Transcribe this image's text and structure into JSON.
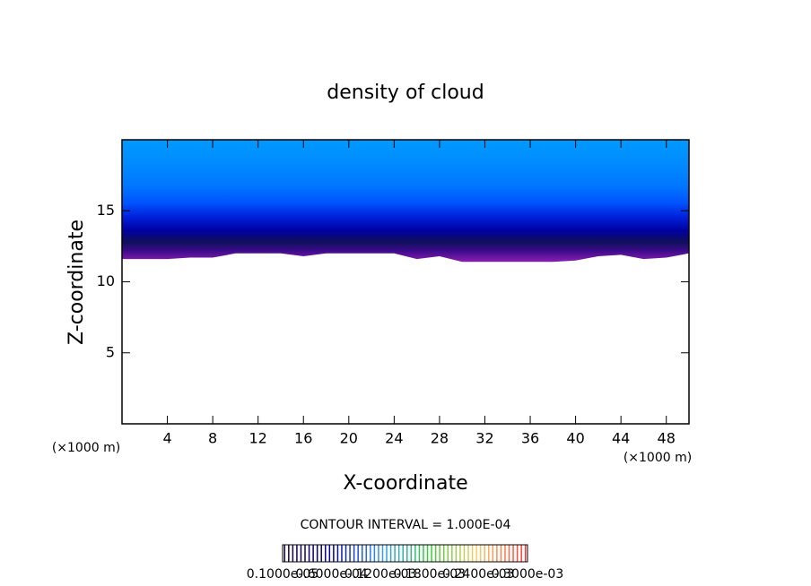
{
  "chart_data": {
    "type": "contour",
    "title": "density of cloud",
    "x_label": "X-coordinate",
    "y_label": "Z-coordinate",
    "x_unit": "(×1000 m)",
    "y_unit": "(×1000 m)",
    "annotation": "CONTOUR INTERVAL = 1.000E-04",
    "xlim": [
      0,
      50
    ],
    "ylim": [
      0,
      20
    ],
    "xticks": [
      4,
      8,
      12,
      16,
      20,
      24,
      28,
      32,
      36,
      40,
      44,
      48
    ],
    "yticks": [
      5,
      10,
      15
    ],
    "x": [
      0,
      2,
      4,
      6,
      8,
      10,
      12,
      14,
      16,
      18,
      20,
      22,
      24,
      26,
      28,
      30,
      32,
      34,
      36,
      38,
      40,
      42,
      44,
      46,
      48,
      50
    ],
    "cloud_base": [
      11.6,
      11.6,
      11.6,
      11.7,
      11.7,
      12.0,
      12.0,
      12.0,
      11.8,
      12.0,
      12.0,
      12.0,
      12.0,
      11.6,
      11.8,
      11.4,
      11.4,
      11.4,
      11.4,
      11.4,
      11.5,
      11.8,
      11.9,
      11.6,
      11.7,
      12.0
    ],
    "colorbar_labels": [
      "0.1000e-05",
      "0.6000e-04",
      "0.1200e-03",
      "0.1800e-03",
      "0.2400e-03",
      "0.3000e-03"
    ],
    "colormap": [
      "#1a0033",
      "#0000aa",
      "#3399ff",
      "#33cc33",
      "#ffcc66",
      "#ff3333"
    ]
  }
}
